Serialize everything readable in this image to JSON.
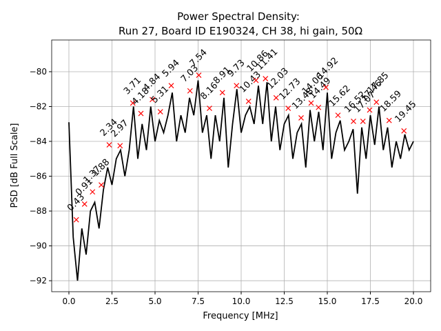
{
  "chart_data": {
    "type": "line",
    "title": "Power Spectral Density:",
    "subtitle": "Run 27, Board ID E190324, CH 38, hi gain, 50Ω",
    "xlabel": "Frequency [MHz]",
    "ylabel": "PSD [dB Full Scale]",
    "xlim": [
      -1,
      21
    ],
    "ylim": [
      -92.63,
      -78.18
    ],
    "xticks": [
      {
        "value": 0,
        "label": "0.0"
      },
      {
        "value": 2.5,
        "label": "2.5"
      },
      {
        "value": 5,
        "label": "5.0"
      },
      {
        "value": 7.5,
        "label": "7.5"
      },
      {
        "value": 10,
        "label": "10.0"
      },
      {
        "value": 12.5,
        "label": "12.5"
      },
      {
        "value": 15,
        "label": "15.0"
      },
      {
        "value": 17.5,
        "label": "17.5"
      },
      {
        "value": 20,
        "label": "20.0"
      }
    ],
    "yticks": [
      {
        "value": -92,
        "label": "−92"
      },
      {
        "value": -90,
        "label": "−90"
      },
      {
        "value": -88,
        "label": "−88"
      },
      {
        "value": -86,
        "label": "−86"
      },
      {
        "value": -84,
        "label": "−84"
      },
      {
        "value": -82,
        "label": "−82"
      },
      {
        "value": -80,
        "label": "−80"
      }
    ],
    "grid": true,
    "x": [
      0,
      0.25,
      0.5,
      0.75,
      1,
      1.25,
      1.5,
      1.75,
      2,
      2.25,
      2.5,
      2.75,
      3,
      3.25,
      3.5,
      3.75,
      4,
      4.25,
      4.5,
      4.75,
      5,
      5.25,
      5.5,
      5.75,
      6,
      6.25,
      6.5,
      6.75,
      7,
      7.25,
      7.5,
      7.75,
      8,
      8.25,
      8.5,
      8.75,
      9,
      9.25,
      9.5,
      9.75,
      10,
      10.25,
      10.5,
      10.75,
      11,
      11.25,
      11.5,
      11.75,
      12,
      12.25,
      12.5,
      12.75,
      13,
      13.25,
      13.5,
      13.75,
      14,
      14.25,
      14.5,
      14.75,
      15,
      15.25,
      15.5,
      15.75,
      16,
      16.25,
      16.5,
      16.75,
      17,
      17.25,
      17.5,
      17.75,
      18,
      18.25,
      18.5,
      18.75,
      19,
      19.25,
      19.5,
      19.75,
      20
    ],
    "series": [
      {
        "color": "#000000",
        "values": [
          -82.9,
          -89.5,
          -92,
          -89,
          -90.5,
          -88,
          -87.5,
          -89,
          -86.8,
          -85.5,
          -86.5,
          -85,
          -84.5,
          -86,
          -84.5,
          -82,
          -85,
          -83,
          -84.5,
          -82,
          -84,
          -82.8,
          -83.5,
          -82.5,
          -81.2,
          -84,
          -82.5,
          -83.5,
          -81.5,
          -82.5,
          -80.5,
          -83.5,
          -82.5,
          -85,
          -82.5,
          -84,
          -81.5,
          -85.5,
          -83,
          -81,
          -83.5,
          -82.5,
          -82,
          -83,
          -80.8,
          -83,
          -80.6,
          -84,
          -82,
          -84.5,
          -83,
          -82.5,
          -85,
          -83.5,
          -83,
          -85.5,
          -82.2,
          -84,
          -82.3,
          -84.5,
          -81.2,
          -85,
          -83.5,
          -82.8,
          -84.5,
          -84,
          -83.3,
          -87,
          -83.2,
          -85,
          -82.5,
          -84.2,
          -82,
          -84.5,
          -83.2,
          -85.5,
          -84,
          -85,
          -83.6,
          -84.5,
          -84
        ]
      }
    ],
    "peaks": {
      "color": "#ff0000",
      "x": [
        0.43,
        0.91,
        1.37,
        1.88,
        2.34,
        2.97,
        3.71,
        4.18,
        4.84,
        5.31,
        5.94,
        7.03,
        7.54,
        8.16,
        8.91,
        9.73,
        10.43,
        10.86,
        11.41,
        12.03,
        12.73,
        13.48,
        14.06,
        14.49,
        14.92,
        15.62,
        16.52,
        17.07,
        17.46,
        17.85,
        18.59,
        19.45
      ],
      "values": [
        -88.5,
        -87.6,
        -86.9,
        -86.5,
        -84.2,
        -84.25,
        -81.8,
        -82.4,
        -81.6,
        -82.3,
        -80.8,
        -81.1,
        -80.2,
        -82.1,
        -81.2,
        -80.8,
        -81.7,
        -80.5,
        -80.4,
        -81.5,
        -82.1,
        -82.65,
        -81.8,
        -82.05,
        -80.9,
        -82.5,
        -82.85,
        -82.85,
        -82.2,
        -81.75,
        -82.8,
        -83.4
      ]
    }
  }
}
